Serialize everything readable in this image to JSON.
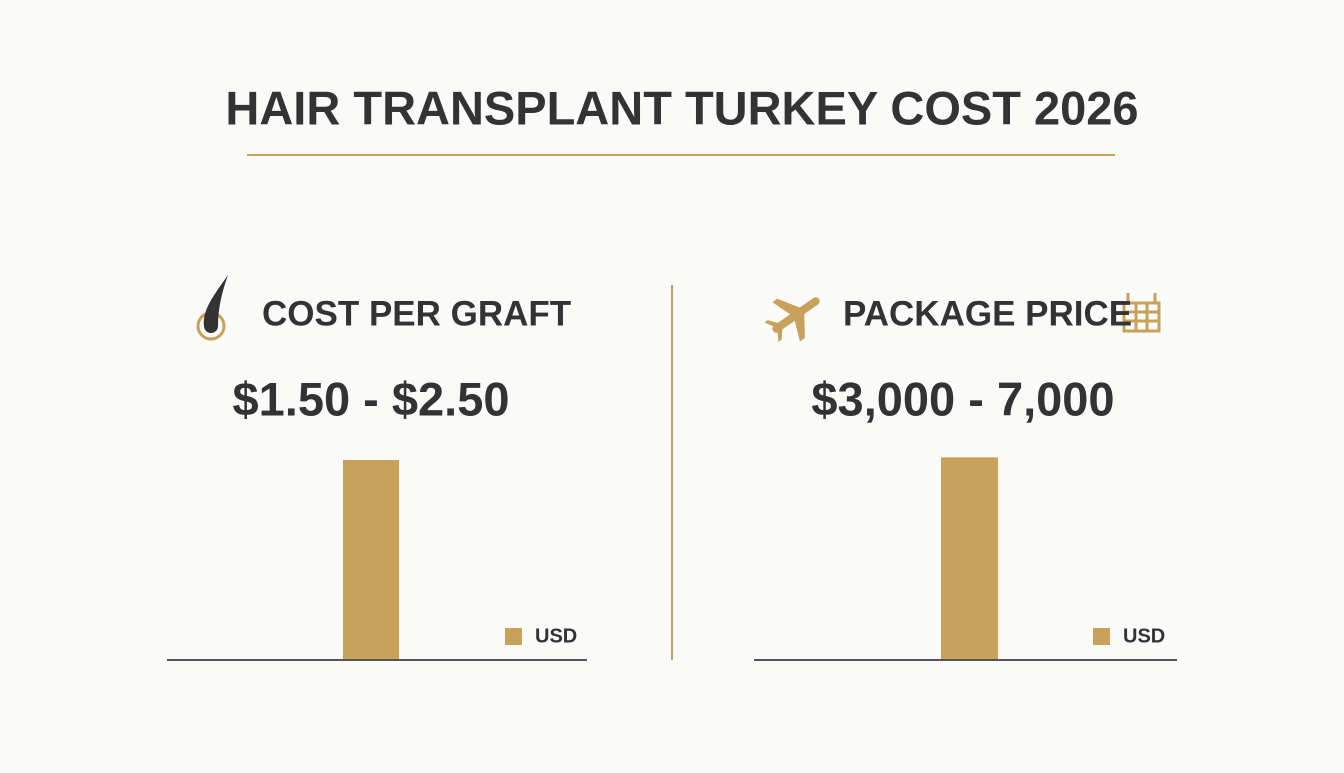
{
  "header": {
    "title": "HAIR TRANSPLANT TURKEY COST 2026"
  },
  "chart_data": [
    {
      "type": "bar",
      "title": "COST PER GRAFT",
      "subtitle": "$1.50 - $2.50",
      "categories": [
        null
      ],
      "series": [
        {
          "name": "USD",
          "color": "#c8a15b",
          "values": [
            2.5
          ]
        }
      ],
      "ylim": [
        0,
        2.75
      ]
    },
    {
      "type": "bar",
      "title": "PACKAGE PRICE",
      "subtitle": "$3,000 - 7,000",
      "categories": [
        null
      ],
      "series": [
        {
          "name": "USD",
          "color": "#c8a15b",
          "values": [
            7000
          ]
        }
      ],
      "ylim": [
        0,
        7600
      ]
    }
  ]
}
